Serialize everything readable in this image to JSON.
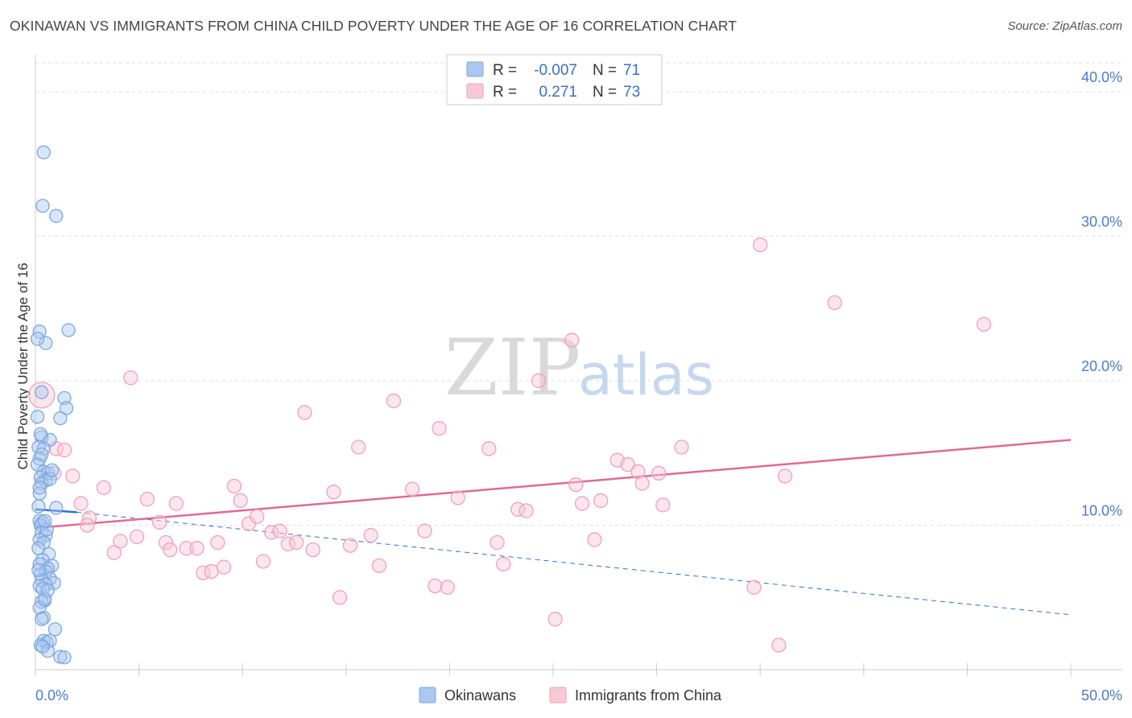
{
  "header": {
    "title": "OKINAWAN VS IMMIGRANTS FROM CHINA CHILD POVERTY UNDER THE AGE OF 16 CORRELATION CHART",
    "source": "Source: ZipAtlas.com"
  },
  "watermark": {
    "zip": "ZIP",
    "atlas": "atlas"
  },
  "colors": {
    "okinawan": "#7aa7e0",
    "okinawan_fill": "#aac8f0",
    "okinawan_line": "#2e6fd0",
    "china": "#f0a0b8",
    "china_fill": "#f8c8d6",
    "china_line": "#e06a92",
    "axis_text": "#4a7bc8",
    "grid": "#dddddd"
  },
  "legend": {
    "rows": [
      {
        "r_label": "R =",
        "r_value": "-0.007",
        "n_label": "N =",
        "n_value": "71"
      },
      {
        "r_label": "R =",
        "r_value": "0.271",
        "n_label": "N =",
        "n_value": "73"
      }
    ]
  },
  "chart_data": {
    "type": "scatter",
    "title": "OKINAWAN VS IMMIGRANTS FROM CHINA CHILD POVERTY UNDER THE AGE OF 16 CORRELATION CHART",
    "xlabel": "",
    "ylabel": "Child Poverty Under the Age of 16",
    "xlim": [
      0,
      50
    ],
    "ylim": [
      0,
      42
    ],
    "x_tick_labels": [
      "0.0%",
      "50.0%"
    ],
    "y_ticks": [
      10,
      20,
      30,
      40
    ],
    "y_tick_labels": [
      "10.0%",
      "20.0%",
      "30.0%",
      "40.0%"
    ],
    "grid": true,
    "series": [
      {
        "name": "Okinawans",
        "r": -0.007,
        "n": 71,
        "trend_solid": {
          "x": [
            0,
            2.0
          ],
          "y": [
            11.1,
            10.9
          ]
        },
        "trend_dashed": {
          "x": [
            2.0,
            50
          ],
          "y": [
            10.9,
            3.8
          ]
        },
        "points": [
          [
            0.4,
            35.8
          ],
          [
            0.35,
            32.1
          ],
          [
            1.0,
            31.4
          ],
          [
            0.2,
            23.4
          ],
          [
            0.5,
            22.6
          ],
          [
            1.6,
            23.5
          ],
          [
            0.1,
            22.9
          ],
          [
            0.3,
            19.2
          ],
          [
            1.4,
            18.8
          ],
          [
            1.5,
            18.1
          ],
          [
            0.1,
            17.5
          ],
          [
            1.2,
            17.4
          ],
          [
            0.3,
            16.1
          ],
          [
            0.7,
            15.9
          ],
          [
            0.15,
            15.4
          ],
          [
            0.4,
            15.3
          ],
          [
            0.2,
            14.6
          ],
          [
            0.1,
            14.2
          ],
          [
            0.4,
            13.7
          ],
          [
            0.6,
            13.6
          ],
          [
            0.25,
            13.3
          ],
          [
            0.5,
            13.1
          ],
          [
            0.3,
            12.9
          ],
          [
            0.2,
            12.2
          ],
          [
            1.0,
            11.2
          ],
          [
            0.15,
            11.3
          ],
          [
            0.2,
            10.3
          ],
          [
            0.35,
            10.2
          ],
          [
            0.25,
            10.0
          ],
          [
            0.3,
            9.5
          ],
          [
            0.5,
            9.3
          ],
          [
            0.2,
            9.0
          ],
          [
            0.4,
            8.8
          ],
          [
            0.15,
            8.4
          ],
          [
            0.65,
            8.0
          ],
          [
            0.35,
            7.6
          ],
          [
            0.8,
            7.2
          ],
          [
            0.2,
            7.3
          ],
          [
            0.6,
            7.0
          ],
          [
            0.5,
            6.8
          ],
          [
            0.25,
            6.6
          ],
          [
            0.7,
            6.3
          ],
          [
            0.3,
            6.2
          ],
          [
            0.9,
            6.0
          ],
          [
            0.5,
            5.9
          ],
          [
            0.2,
            5.8
          ],
          [
            0.35,
            5.6
          ],
          [
            0.45,
            4.8
          ],
          [
            0.3,
            4.7
          ],
          [
            0.2,
            4.3
          ],
          [
            0.4,
            3.6
          ],
          [
            0.3,
            3.5
          ],
          [
            0.95,
            2.8
          ],
          [
            0.4,
            2.0
          ],
          [
            0.55,
            1.9
          ],
          [
            0.7,
            2.0
          ],
          [
            0.25,
            1.7
          ],
          [
            0.6,
            1.3
          ],
          [
            1.2,
            0.9
          ],
          [
            1.4,
            0.85
          ],
          [
            0.45,
            4.9
          ],
          [
            0.15,
            6.9
          ],
          [
            0.55,
            9.7
          ],
          [
            0.45,
            10.3
          ],
          [
            0.3,
            14.9
          ],
          [
            0.7,
            13.2
          ],
          [
            0.2,
            12.6
          ],
          [
            0.6,
            5.5
          ],
          [
            0.35,
            1.6
          ],
          [
            0.8,
            13.8
          ],
          [
            0.25,
            16.3
          ]
        ]
      },
      {
        "name": "Immigrants from China",
        "r": 0.271,
        "n": 73,
        "trend": {
          "x": [
            0,
            50
          ],
          "y": [
            9.8,
            15.9
          ]
        },
        "points": [
          [
            0.3,
            19.0
          ],
          [
            1.0,
            15.3
          ],
          [
            1.4,
            15.2
          ],
          [
            0.9,
            13.6
          ],
          [
            1.8,
            13.4
          ],
          [
            2.2,
            11.5
          ],
          [
            2.6,
            10.5
          ],
          [
            2.5,
            10.0
          ],
          [
            3.3,
            12.6
          ],
          [
            3.8,
            8.1
          ],
          [
            4.1,
            8.9
          ],
          [
            4.6,
            20.2
          ],
          [
            4.9,
            9.2
          ],
          [
            5.4,
            11.8
          ],
          [
            6.0,
            10.2
          ],
          [
            6.3,
            8.8
          ],
          [
            6.5,
            8.3
          ],
          [
            6.8,
            11.5
          ],
          [
            7.3,
            8.4
          ],
          [
            7.8,
            8.4
          ],
          [
            8.1,
            6.7
          ],
          [
            8.5,
            6.8
          ],
          [
            8.8,
            8.8
          ],
          [
            9.1,
            7.1
          ],
          [
            9.6,
            12.7
          ],
          [
            9.9,
            11.7
          ],
          [
            10.3,
            10.1
          ],
          [
            10.7,
            10.6
          ],
          [
            11.0,
            7.5
          ],
          [
            11.4,
            9.5
          ],
          [
            11.8,
            9.6
          ],
          [
            12.2,
            8.7
          ],
          [
            12.6,
            8.8
          ],
          [
            13.0,
            17.8
          ],
          [
            13.4,
            8.3
          ],
          [
            14.4,
            12.3
          ],
          [
            14.7,
            5.0
          ],
          [
            15.2,
            8.6
          ],
          [
            15.6,
            15.4
          ],
          [
            16.2,
            9.3
          ],
          [
            16.6,
            7.2
          ],
          [
            17.3,
            18.6
          ],
          [
            18.2,
            12.5
          ],
          [
            18.8,
            9.6
          ],
          [
            19.3,
            5.8
          ],
          [
            19.5,
            16.7
          ],
          [
            19.9,
            5.7
          ],
          [
            20.4,
            11.9
          ],
          [
            21.9,
            15.3
          ],
          [
            22.3,
            8.8
          ],
          [
            22.6,
            7.3
          ],
          [
            23.3,
            11.1
          ],
          [
            23.7,
            11.0
          ],
          [
            24.3,
            20.0
          ],
          [
            25.1,
            3.5
          ],
          [
            25.9,
            22.8
          ],
          [
            26.1,
            12.8
          ],
          [
            26.4,
            11.5
          ],
          [
            27.0,
            9.0
          ],
          [
            27.3,
            11.7
          ],
          [
            28.1,
            14.5
          ],
          [
            28.6,
            14.2
          ],
          [
            29.1,
            13.7
          ],
          [
            29.3,
            12.9
          ],
          [
            30.1,
            13.6
          ],
          [
            30.3,
            11.4
          ],
          [
            31.2,
            15.4
          ],
          [
            34.7,
            5.7
          ],
          [
            35.0,
            29.4
          ],
          [
            35.9,
            1.7
          ],
          [
            36.2,
            13.4
          ],
          [
            38.6,
            25.4
          ],
          [
            45.8,
            23.9
          ]
        ]
      }
    ]
  },
  "bottom_legend": {
    "items": [
      {
        "label": "Okinawans"
      },
      {
        "label": "Immigrants from China"
      }
    ]
  }
}
